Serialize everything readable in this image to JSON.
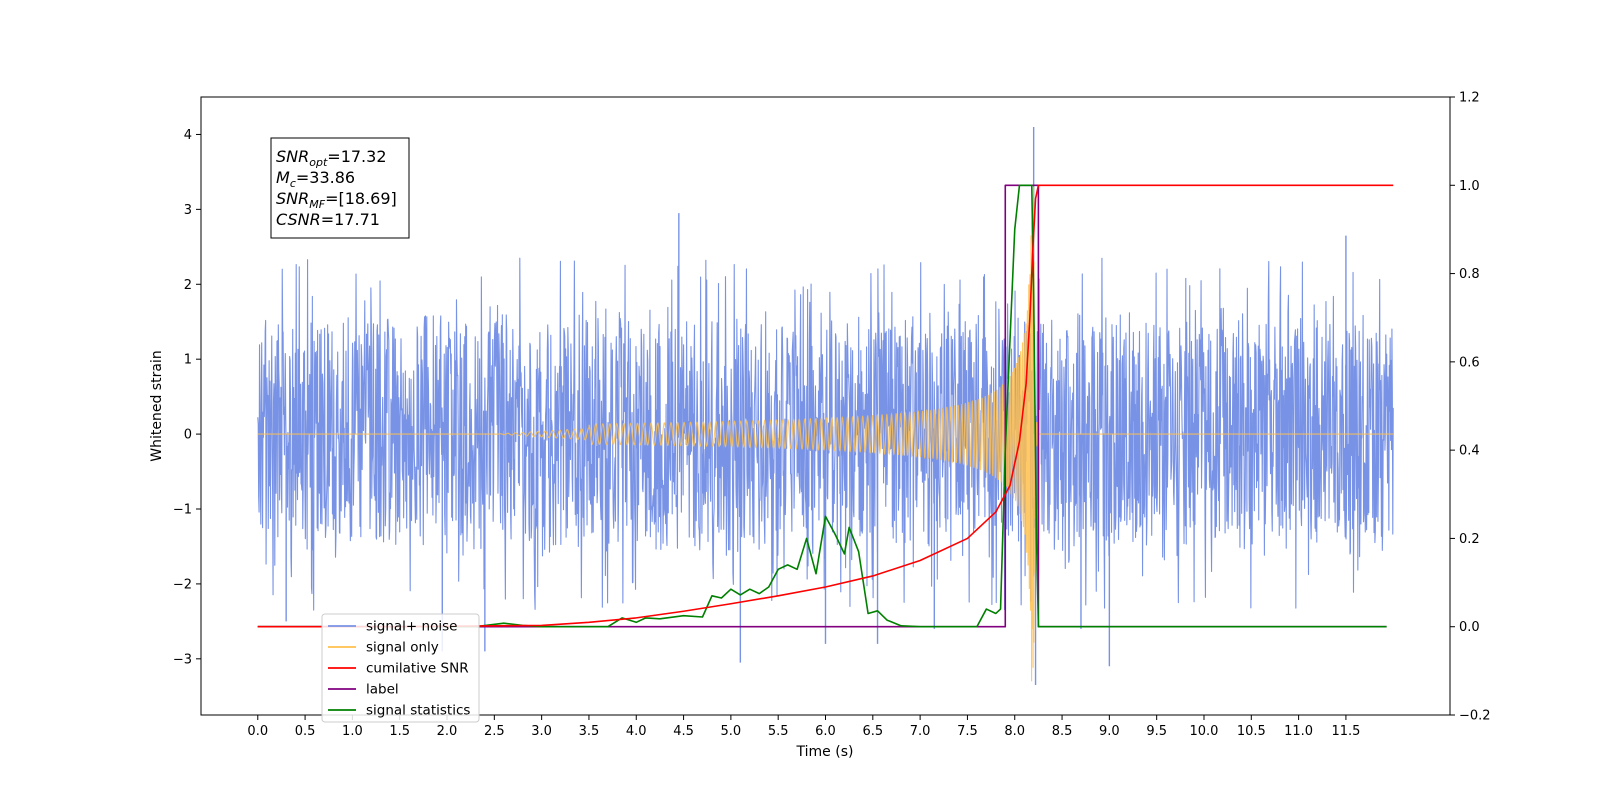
{
  "chart_data": {
    "type": "line",
    "xlabel": "Time (s)",
    "ylabel": "Whitened strain",
    "xlim": [
      -0.6,
      12.6
    ],
    "ylim": [
      -3.75,
      4.5
    ],
    "y2lim": [
      -0.2,
      1.2
    ],
    "x_ticks": [
      "0.0",
      "0.5",
      "1.0",
      "1.5",
      "2.0",
      "2.5",
      "3.0",
      "3.5",
      "4.0",
      "4.5",
      "5.0",
      "5.5",
      "6.0",
      "6.5",
      "7.0",
      "7.5",
      "8.0",
      "8.5",
      "9.0",
      "9.5",
      "10.0",
      "10.5",
      "11.0",
      "11.5"
    ],
    "y_ticks": [
      "−3",
      "−2",
      "−1",
      "0",
      "1",
      "2",
      "3",
      "4"
    ],
    "y2_ticks": [
      "−0.2",
      "0.0",
      "0.2",
      "0.4",
      "0.6",
      "0.8",
      "1.0",
      "1.2"
    ],
    "grid": false,
    "legend_position": "bottom-left",
    "annotation": [
      {
        "sym": "SNR",
        "sub": "opt",
        "value": "=17.32"
      },
      {
        "sym": "M",
        "sub": "c",
        "value": "=33.86"
      },
      {
        "sym": "SNR",
        "sub": "MF",
        "value": "=[18.69]"
      },
      {
        "sym": "CSNR",
        "sub": "",
        "value": "=17.71"
      }
    ],
    "series": [
      {
        "name": "signal+ noise",
        "axis": "left",
        "color": "#7893e6",
        "kind": "noise",
        "x_range": [
          0.0,
          12.0
        ],
        "typical_peak": 1.6,
        "notable_spikes": [
          [
            0.3,
            -2.5
          ],
          [
            1.95,
            -2.9
          ],
          [
            2.4,
            -2.9
          ],
          [
            4.45,
            2.95
          ],
          [
            5.1,
            -3.05
          ],
          [
            6.0,
            -2.8
          ],
          [
            6.55,
            -2.8
          ],
          [
            7.15,
            -2.6
          ],
          [
            8.2,
            4.1
          ],
          [
            8.22,
            -3.35
          ],
          [
            8.7,
            -2.6
          ],
          [
            9.0,
            -3.1
          ],
          [
            11.5,
            2.65
          ]
        ]
      },
      {
        "name": "signal only",
        "axis": "left",
        "color": "#ffc04d",
        "kind": "chirp",
        "x_range": [
          0.0,
          12.0
        ],
        "merger_time": 8.2,
        "peak_amplitude": 3.3
      },
      {
        "name": "cumilative SNR",
        "axis": "right",
        "color": "#ff0000",
        "x": [
          0.0,
          1.5,
          3.0,
          3.5,
          4.0,
          4.5,
          5.0,
          5.5,
          6.0,
          6.5,
          7.0,
          7.5,
          7.8,
          7.95,
          8.05,
          8.12,
          8.16,
          8.19,
          8.22,
          8.25,
          12.0
        ],
        "values": [
          0.0,
          0.0,
          0.003,
          0.01,
          0.02,
          0.035,
          0.052,
          0.07,
          0.09,
          0.115,
          0.15,
          0.2,
          0.26,
          0.32,
          0.42,
          0.55,
          0.7,
          0.85,
          0.97,
          1.0,
          1.0
        ]
      },
      {
        "name": "label",
        "axis": "right",
        "color": "#800080",
        "x": [
          0.0,
          7.9,
          7.9,
          8.25,
          8.25,
          11.93
        ],
        "values": [
          0.0,
          0.0,
          1.0,
          1.0,
          0.0,
          0.0
        ]
      },
      {
        "name": "signal statistics",
        "axis": "right",
        "color": "#008000",
        "x": [
          0.0,
          2.3,
          2.6,
          2.8,
          3.0,
          3.7,
          3.85,
          4.0,
          4.1,
          4.25,
          4.5,
          4.7,
          4.8,
          4.9,
          5.0,
          5.1,
          5.2,
          5.3,
          5.4,
          5.5,
          5.6,
          5.7,
          5.8,
          5.9,
          6.0,
          6.1,
          6.2,
          6.25,
          6.35,
          6.45,
          6.55,
          6.65,
          6.8,
          7.0,
          7.6,
          7.7,
          7.8,
          7.85,
          7.9,
          8.0,
          8.05,
          8.12,
          8.18,
          8.2,
          8.23,
          8.25,
          11.93
        ],
        "values": [
          0.0,
          0.0,
          0.008,
          0.003,
          0.0,
          0.0,
          0.02,
          0.01,
          0.02,
          0.018,
          0.025,
          0.022,
          0.07,
          0.065,
          0.085,
          0.072,
          0.085,
          0.075,
          0.09,
          0.13,
          0.14,
          0.13,
          0.2,
          0.12,
          0.25,
          0.21,
          0.165,
          0.225,
          0.17,
          0.03,
          0.036,
          0.015,
          0.002,
          0.0,
          0.0,
          0.04,
          0.03,
          0.04,
          0.4,
          0.9,
          1.0,
          1.0,
          1.0,
          0.75,
          0.2,
          0.0,
          0.0
        ]
      }
    ]
  },
  "legend": {
    "items": [
      {
        "label": "signal+ noise",
        "color": "#7893e6"
      },
      {
        "label": "signal only",
        "color": "#ffc04d"
      },
      {
        "label": "cumilative SNR",
        "color": "#ff0000"
      },
      {
        "label": "label",
        "color": "#800080"
      },
      {
        "label": "signal statistics",
        "color": "#008000"
      }
    ]
  }
}
